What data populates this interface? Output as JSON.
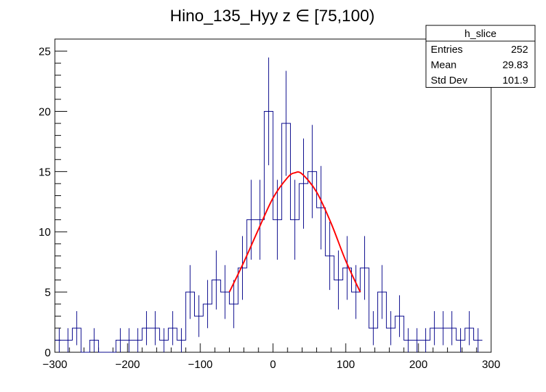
{
  "chart_data": {
    "type": "histogram",
    "title": "Hino_135_Hyy z  ∈ [75,100)",
    "xlim": [
      -300,
      300
    ],
    "ylim": [
      0,
      26
    ],
    "x_ticks": [
      -300,
      -200,
      -100,
      0,
      100,
      200,
      300
    ],
    "y_ticks": [
      0,
      5,
      10,
      15,
      20,
      25
    ],
    "grid": false,
    "bin_width": 12,
    "bin_start": -300,
    "series": [
      {
        "type": "histogram",
        "values": [
          1,
          1,
          2,
          0,
          1,
          0,
          0,
          1,
          1,
          1,
          2,
          2,
          1,
          2,
          1,
          5,
          3,
          4,
          6,
          5,
          4,
          7,
          11,
          11,
          20,
          11,
          19,
          11,
          14,
          15,
          12,
          8,
          6,
          7,
          5,
          7,
          2,
          5,
          2,
          3,
          1,
          1,
          1,
          2,
          2,
          2,
          1,
          2,
          1
        ],
        "color": "#000088"
      },
      {
        "type": "fit",
        "color": "#ff0000",
        "points": [
          [
            -60,
            5
          ],
          [
            -40,
            7.5
          ],
          [
            -20,
            10.2
          ],
          [
            0,
            12.8
          ],
          [
            20,
            14.5
          ],
          [
            30,
            14.9
          ],
          [
            40,
            14.8
          ],
          [
            60,
            13.3
          ],
          [
            80,
            10.7
          ],
          [
            100,
            7.6
          ],
          [
            120,
            5
          ]
        ]
      }
    ],
    "stats_box": {
      "name": "h_slice",
      "rows": [
        {
          "label": "Entries",
          "value": "252"
        },
        {
          "label": "Mean",
          "value": "29.83"
        },
        {
          "label": "Std Dev",
          "value": "101.9"
        }
      ]
    }
  }
}
